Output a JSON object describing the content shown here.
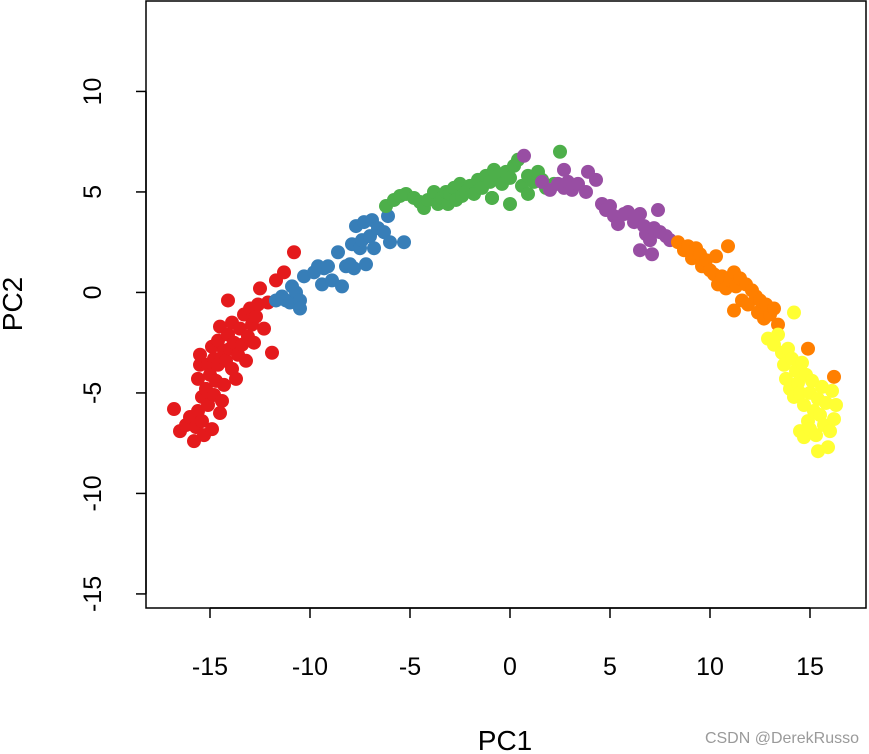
{
  "watermark": "CSDN @DerekRusso",
  "chart_data": {
    "type": "scatter",
    "title": "",
    "xlabel": "PC1",
    "ylabel": "PC2",
    "xlim": [
      -18.2,
      17.8
    ],
    "ylim": [
      -15.7,
      14.5
    ],
    "xticks": [
      -15,
      -10,
      -5,
      0,
      5,
      10,
      15
    ],
    "yticks": [
      -15,
      -10,
      -5,
      0,
      5,
      10
    ],
    "grid": false,
    "legend": "none",
    "series": [
      {
        "color": "#e41a1c",
        "points": [
          [
            -16.8,
            -5.8
          ],
          [
            -16.5,
            -6.9
          ],
          [
            -16.2,
            -6.6
          ],
          [
            -16,
            -6.2
          ],
          [
            -15.8,
            -7.4
          ],
          [
            -15.7,
            -6.7
          ],
          [
            -15.6,
            -5.9
          ],
          [
            -15.6,
            -4.3
          ],
          [
            -15.5,
            -3.6
          ],
          [
            -15.5,
            -3.1
          ],
          [
            -15.4,
            -5.2
          ],
          [
            -15.4,
            -6.4
          ],
          [
            -15.3,
            -7.1
          ],
          [
            -15.2,
            -4.8
          ],
          [
            -15.1,
            -5.6
          ],
          [
            -15.1,
            -3.6
          ],
          [
            -15,
            -4.1
          ],
          [
            -14.9,
            -2.7
          ],
          [
            -14.9,
            -6.8
          ],
          [
            -14.8,
            -3.3
          ],
          [
            -14.8,
            -5.1
          ],
          [
            -14.7,
            -4.4
          ],
          [
            -14.6,
            -3.6
          ],
          [
            -14.6,
            -2.4
          ],
          [
            -14.5,
            -6.0
          ],
          [
            -14.5,
            -1.7
          ],
          [
            -14.4,
            -5.4
          ],
          [
            -14.3,
            -2.9
          ],
          [
            -14.3,
            -4.6
          ],
          [
            -14.2,
            -3.4
          ],
          [
            -14.1,
            -2.1
          ],
          [
            -14.1,
            -0.4
          ],
          [
            -14,
            -2.8
          ],
          [
            -13.9,
            -3.8
          ],
          [
            -13.9,
            -1.5
          ],
          [
            -13.8,
            -2.5
          ],
          [
            -13.7,
            -4.3
          ],
          [
            -13.6,
            -3.1
          ],
          [
            -13.5,
            -1.8
          ],
          [
            -13.4,
            -2.6
          ],
          [
            -13.3,
            -1.1
          ],
          [
            -13.2,
            -3.4
          ],
          [
            -13.1,
            -2.2
          ],
          [
            -13,
            -0.8
          ],
          [
            -12.9,
            -1.6
          ],
          [
            -12.8,
            -2.5
          ],
          [
            -12.7,
            -1.2
          ],
          [
            -12.6,
            -0.6
          ],
          [
            -12.5,
            0.2
          ],
          [
            -12.3,
            -1.8
          ],
          [
            -12.1,
            -0.5
          ],
          [
            -11.9,
            -3.0
          ],
          [
            -11.7,
            0.6
          ],
          [
            -11.3,
            1.0
          ],
          [
            -10.8,
            2.0
          ]
        ]
      },
      {
        "color": "#377eb8",
        "points": [
          [
            -11.7,
            -0.4
          ],
          [
            -11.4,
            -0.2
          ],
          [
            -11.2,
            -0.4
          ],
          [
            -11,
            -0.5
          ],
          [
            -10.9,
            0.3
          ],
          [
            -10.7,
            0.0
          ],
          [
            -10.5,
            -0.4
          ],
          [
            -10.5,
            -0.8
          ],
          [
            -10.3,
            0.8
          ],
          [
            -9.8,
            1.0
          ],
          [
            -9.6,
            1.3
          ],
          [
            -9.4,
            0.4
          ],
          [
            -9.3,
            1.2
          ],
          [
            -9.1,
            1.3
          ],
          [
            -8.9,
            0.6
          ],
          [
            -8.6,
            2.0
          ],
          [
            -8.4,
            0.3
          ],
          [
            -8.2,
            1.3
          ],
          [
            -8.0,
            1.4
          ],
          [
            -7.9,
            2.4
          ],
          [
            -7.8,
            1.2
          ],
          [
            -7.7,
            3.3
          ],
          [
            -7.5,
            2.2
          ],
          [
            -7.4,
            2.6
          ],
          [
            -7.3,
            3.5
          ],
          [
            -7.2,
            1.4
          ],
          [
            -7,
            2.8
          ],
          [
            -6.9,
            3.6
          ],
          [
            -6.8,
            2.2
          ],
          [
            -6.6,
            3.2
          ],
          [
            -6.3,
            3.0
          ],
          [
            -6.1,
            3.8
          ],
          [
            -6,
            2.5
          ],
          [
            -5.3,
            2.5
          ]
        ]
      },
      {
        "color": "#4daf4a",
        "points": [
          [
            -6.2,
            4.3
          ],
          [
            -5.8,
            4.6
          ],
          [
            -5.5,
            4.8
          ],
          [
            -5.2,
            4.9
          ],
          [
            -4.8,
            4.7
          ],
          [
            -4.5,
            4.5
          ],
          [
            -4.3,
            4.2
          ],
          [
            -4.1,
            4.6
          ],
          [
            -3.8,
            5.0
          ],
          [
            -3.6,
            4.4
          ],
          [
            -3.4,
            4.7
          ],
          [
            -3.2,
            5.0
          ],
          [
            -3.1,
            4.4
          ],
          [
            -3.0,
            4.9
          ],
          [
            -2.8,
            5.2
          ],
          [
            -2.7,
            4.6
          ],
          [
            -2.5,
            5.4
          ],
          [
            -2.4,
            4.8
          ],
          [
            -2.2,
            5.0
          ],
          [
            -2.0,
            5.3
          ],
          [
            -1.8,
            4.9
          ],
          [
            -1.6,
            5.6
          ],
          [
            -1.4,
            5.2
          ],
          [
            -1.2,
            5.8
          ],
          [
            -1.0,
            5.5
          ],
          [
            -0.9,
            4.7
          ],
          [
            -0.8,
            6.1
          ],
          [
            -0.6,
            5.8
          ],
          [
            -0.4,
            5.4
          ],
          [
            -0.2,
            6.0
          ],
          [
            0.0,
            5.7
          ],
          [
            0.2,
            6.3
          ],
          [
            0.4,
            6.6
          ],
          [
            0.6,
            5.3
          ],
          [
            0.9,
            5.8
          ],
          [
            1.2,
            5.5
          ],
          [
            1.4,
            6.0
          ],
          [
            1.6,
            5.6
          ],
          [
            1.8,
            5.2
          ],
          [
            2.2,
            5.4
          ],
          [
            0.0,
            4.4
          ],
          [
            0.9,
            4.9
          ],
          [
            2.5,
            7.0
          ],
          [
            -0.9,
            4.7
          ]
        ]
      },
      {
        "color": "#984ea3",
        "points": [
          [
            0.7,
            6.8
          ],
          [
            1.6,
            5.5
          ],
          [
            2.0,
            5.1
          ],
          [
            2.4,
            5.4
          ],
          [
            2.7,
            5.2
          ],
          [
            2.9,
            5.5
          ],
          [
            3.1,
            5.1
          ],
          [
            2.7,
            6.1
          ],
          [
            3.4,
            5.4
          ],
          [
            3.8,
            5.0
          ],
          [
            4.3,
            5.6
          ],
          [
            4.6,
            4.4
          ],
          [
            4.8,
            4.1
          ],
          [
            5.0,
            4.3
          ],
          [
            5.2,
            3.8
          ],
          [
            5.4,
            3.4
          ],
          [
            5.7,
            3.9
          ],
          [
            5.9,
            4.0
          ],
          [
            6.2,
            3.5
          ],
          [
            6.5,
            3.9
          ],
          [
            6.7,
            3.3
          ],
          [
            6.8,
            2.9
          ],
          [
            7.0,
            2.6
          ],
          [
            7.2,
            3.2
          ],
          [
            7.4,
            4.1
          ],
          [
            7.5,
            3.0
          ],
          [
            7.8,
            2.8
          ],
          [
            8.0,
            2.6
          ],
          [
            6.5,
            2.1
          ],
          [
            7.1,
            1.9
          ],
          [
            3.9,
            6.0
          ]
        ]
      },
      {
        "color": "#ff7f00",
        "points": [
          [
            8.4,
            2.5
          ],
          [
            8.7,
            2.1
          ],
          [
            8.9,
            2.3
          ],
          [
            9.1,
            1.7
          ],
          [
            9.3,
            2.2
          ],
          [
            9.5,
            1.9
          ],
          [
            9.6,
            1.3
          ],
          [
            9.8,
            1.6
          ],
          [
            10.0,
            1.1
          ],
          [
            10.2,
            0.9
          ],
          [
            10.3,
            1.8
          ],
          [
            10.4,
            0.4
          ],
          [
            10.6,
            0.8
          ],
          [
            10.8,
            0.2
          ],
          [
            10.9,
            2.3
          ],
          [
            11.0,
            0.6
          ],
          [
            11.2,
            1.0
          ],
          [
            11.3,
            0.3
          ],
          [
            11.5,
            0.7
          ],
          [
            11.6,
            -0.4
          ],
          [
            11.8,
            0.4
          ],
          [
            11.9,
            -0.6
          ],
          [
            12.1,
            0.1
          ],
          [
            12.3,
            -0.2
          ],
          [
            12.4,
            -1.0
          ],
          [
            12.5,
            -0.4
          ],
          [
            12.7,
            -1.3
          ],
          [
            12.8,
            -0.6
          ],
          [
            13.0,
            -1.1
          ],
          [
            13.2,
            -0.8
          ],
          [
            13.4,
            -1.6
          ],
          [
            11.2,
            -0.9
          ],
          [
            14.9,
            -2.8
          ],
          [
            16.2,
            -4.2
          ]
        ]
      },
      {
        "color": "#ffff33",
        "points": [
          [
            12.9,
            -2.3
          ],
          [
            13.2,
            -2.6
          ],
          [
            13.4,
            -2.1
          ],
          [
            13.6,
            -3.0
          ],
          [
            13.7,
            -3.6
          ],
          [
            13.8,
            -4.3
          ],
          [
            13.9,
            -2.8
          ],
          [
            14.0,
            -4.8
          ],
          [
            14.1,
            -3.3
          ],
          [
            14.2,
            -5.2
          ],
          [
            14.2,
            -1.0
          ],
          [
            14.3,
            -3.9
          ],
          [
            14.4,
            -4.5
          ],
          [
            14.5,
            -6.9
          ],
          [
            14.5,
            -5.0
          ],
          [
            14.6,
            -3.5
          ],
          [
            14.7,
            -5.6
          ],
          [
            14.7,
            -7.2
          ],
          [
            14.8,
            -4.1
          ],
          [
            14.9,
            -6.4
          ],
          [
            15.0,
            -5.0
          ],
          [
            15.0,
            -6.8
          ],
          [
            15.1,
            -4.4
          ],
          [
            15.2,
            -5.9
          ],
          [
            15.3,
            -7.1
          ],
          [
            15.4,
            -5.3
          ],
          [
            15.4,
            -7.9
          ],
          [
            15.5,
            -6.1
          ],
          [
            15.6,
            -4.7
          ],
          [
            15.7,
            -6.6
          ],
          [
            15.8,
            -5.5
          ],
          [
            15.9,
            -7.7
          ],
          [
            16.0,
            -6.9
          ],
          [
            16.1,
            -4.9
          ],
          [
            16.3,
            -5.6
          ],
          [
            16.2,
            -6.3
          ]
        ]
      }
    ]
  }
}
